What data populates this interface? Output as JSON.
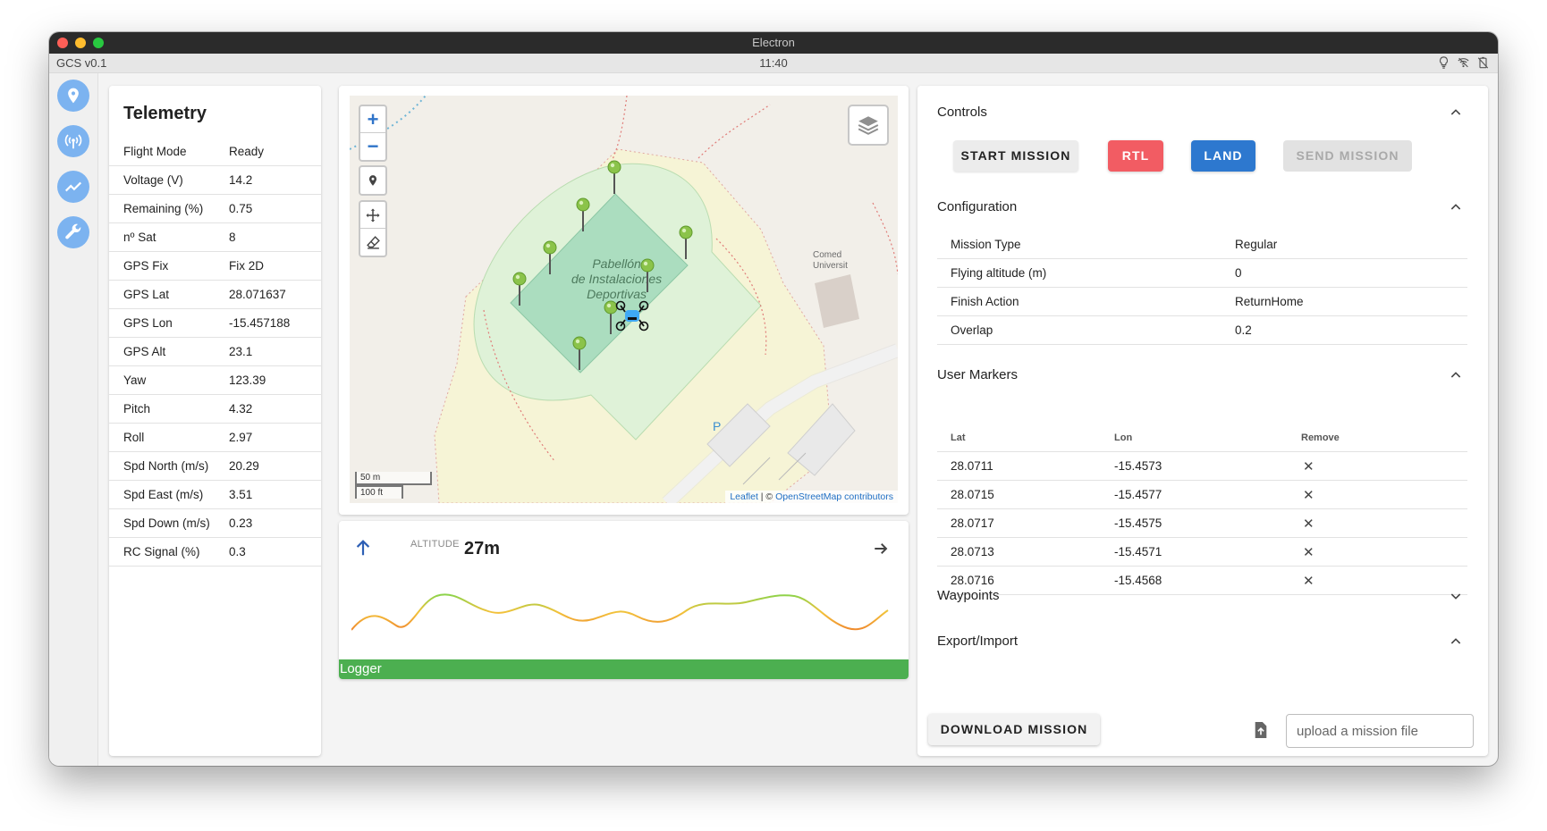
{
  "window": {
    "title": "Electron"
  },
  "statusbar": {
    "app_name": "GCS v0.1",
    "time": "11:40"
  },
  "sidebar": {
    "items": [
      {
        "name": "map-pin-icon"
      },
      {
        "name": "antenna-icon"
      },
      {
        "name": "chart-line-icon"
      },
      {
        "name": "wrench-icon"
      }
    ]
  },
  "telemetry": {
    "title": "Telemetry",
    "rows": [
      {
        "label": "Flight Mode",
        "value": "Ready"
      },
      {
        "label": "Voltage (V)",
        "value": "14.2"
      },
      {
        "label": "Remaining (%)",
        "value": "0.75"
      },
      {
        "label": "nº Sat",
        "value": "8"
      },
      {
        "label": "GPS Fix",
        "value": "Fix 2D"
      },
      {
        "label": "GPS Lat",
        "value": "28.071637"
      },
      {
        "label": "GPS Lon",
        "value": "-15.457188"
      },
      {
        "label": "GPS Alt",
        "value": "23.1"
      },
      {
        "label": "Yaw",
        "value": "123.39"
      },
      {
        "label": "Pitch",
        "value": "4.32"
      },
      {
        "label": "Roll",
        "value": "2.97"
      },
      {
        "label": "Spd North (m/s)",
        "value": "20.29"
      },
      {
        "label": "Spd East (m/s)",
        "value": "3.51"
      },
      {
        "label": "Spd Down (m/s)",
        "value": "0.23"
      },
      {
        "label": "RC Signal (%)",
        "value": "0.3"
      }
    ]
  },
  "map": {
    "zoom_in": "+",
    "zoom_out": "−",
    "label_line1": "Pabellón",
    "label_line2": "de Instalaciones",
    "label_line3": "Deportivas",
    "label_comedor": "Comed",
    "label_universidad": "Universit",
    "parking_label": "P",
    "scale_m": "50 m",
    "scale_ft": "100 ft",
    "attribution_leaflet": "Leaflet",
    "attribution_sep": " | © ",
    "attribution_osm": "OpenStreetMap contributors"
  },
  "altitude": {
    "label": "ALTITUDE",
    "value": "27m"
  },
  "logger": {
    "label": "Logger"
  },
  "controls": {
    "title": "Controls",
    "start_mission": "START MISSION",
    "rtl": "RTL",
    "land": "LAND",
    "send_mission": "SEND MISSION"
  },
  "configuration": {
    "title": "Configuration",
    "rows": [
      {
        "label": "Mission Type",
        "value": "Regular"
      },
      {
        "label": "Flying altitude (m)",
        "value": "0"
      },
      {
        "label": "Finish Action",
        "value": "ReturnHome"
      },
      {
        "label": "Overlap",
        "value": "0.2"
      }
    ]
  },
  "user_markers": {
    "title": "User Markers",
    "headers": {
      "lat": "Lat",
      "lon": "Lon",
      "remove": "Remove"
    },
    "remove_glyph": "✕",
    "rows": [
      {
        "lat": "28.0711",
        "lon": "-15.4573"
      },
      {
        "lat": "28.0715",
        "lon": "-15.4577"
      },
      {
        "lat": "28.0717",
        "lon": "-15.4575"
      },
      {
        "lat": "28.0713",
        "lon": "-15.4571"
      },
      {
        "lat": "28.0716",
        "lon": "-15.4568"
      }
    ]
  },
  "waypoints": {
    "title": "Waypoints"
  },
  "export_import": {
    "title": "Export/Import",
    "download": "DOWNLOAD MISSION",
    "upload_placeholder": "upload a mission file"
  },
  "colors": {
    "accent_blue": "#2d78cf",
    "rtl_red": "#f25c63",
    "logger_green": "#4caf50",
    "nav_blue": "#7cb3f0",
    "marker_green": "#8bc34a",
    "drone_blue": "#3fa9f5"
  }
}
